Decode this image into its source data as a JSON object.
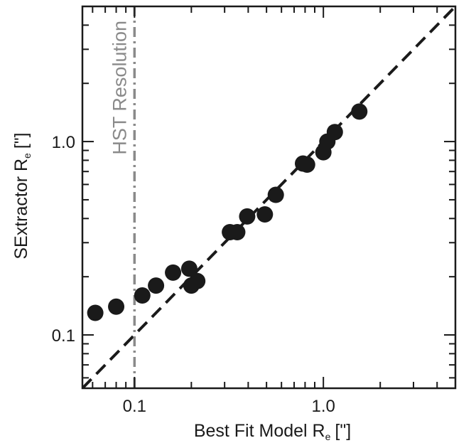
{
  "chart_data": {
    "type": "scatter",
    "title": "",
    "xlabel": "Best Fit Model R",
    "xlabel_sub": "e",
    "xlabel_unit": "[\"]",
    "ylabel": "SExtractor R",
    "ylabel_sub": "e",
    "ylabel_unit": "[\"]",
    "xscale": "log",
    "yscale": "log",
    "xlim": [
      0.053,
      5.0
    ],
    "ylim": [
      0.053,
      5.0
    ],
    "grid": false,
    "legend": "none",
    "x_ticks": [
      {
        "value": 0.1,
        "label": "0.1"
      },
      {
        "value": 1.0,
        "label": "1.0"
      }
    ],
    "y_ticks": [
      {
        "value": 0.1,
        "label": "0.1"
      },
      {
        "value": 1.0,
        "label": "1.0"
      }
    ],
    "reference_lines": [
      {
        "kind": "one-to-one",
        "style": "dashed",
        "color": "#1a1a1a"
      },
      {
        "kind": "vertical",
        "x": 0.1,
        "style": "dash-dot",
        "color": "#8a8a8a",
        "label": "HST Resolution"
      }
    ],
    "marker_color": "#1a1a1a",
    "points": [
      {
        "x": 0.062,
        "y": 0.13
      },
      {
        "x": 0.08,
        "y": 0.14
      },
      {
        "x": 0.11,
        "y": 0.16
      },
      {
        "x": 0.13,
        "y": 0.18
      },
      {
        "x": 0.16,
        "y": 0.21
      },
      {
        "x": 0.195,
        "y": 0.22
      },
      {
        "x": 0.2,
        "y": 0.18
      },
      {
        "x": 0.215,
        "y": 0.19
      },
      {
        "x": 0.32,
        "y": 0.34
      },
      {
        "x": 0.35,
        "y": 0.34
      },
      {
        "x": 0.395,
        "y": 0.41
      },
      {
        "x": 0.49,
        "y": 0.42
      },
      {
        "x": 0.56,
        "y": 0.53
      },
      {
        "x": 0.78,
        "y": 0.77
      },
      {
        "x": 0.82,
        "y": 0.76
      },
      {
        "x": 1.0,
        "y": 0.88
      },
      {
        "x": 1.05,
        "y": 1.0
      },
      {
        "x": 1.15,
        "y": 1.12
      },
      {
        "x": 1.55,
        "y": 1.43
      }
    ]
  }
}
